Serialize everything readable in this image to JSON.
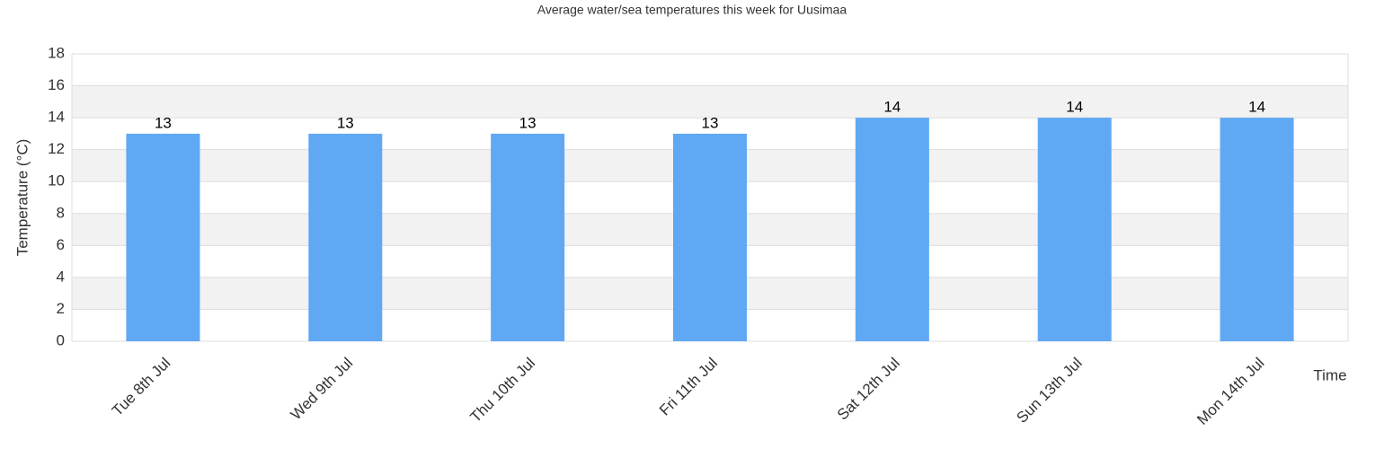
{
  "chart_data": {
    "type": "bar",
    "title": "Average water/sea temperatures this week for Uusimaa",
    "x_label": "Time",
    "y_label": "Temperature (°C)",
    "categories": [
      "Tue 8th Jul",
      "Wed 9th Jul",
      "Thu 10th Jul",
      "Fri 11th Jul",
      "Sat 12th Jul",
      "Sun 13th Jul",
      "Mon 14th Jul"
    ],
    "values": [
      13,
      13,
      13,
      13,
      14,
      14,
      14
    ],
    "color": "#60a8f4",
    "ylim": [
      0,
      18
    ],
    "yticks": [
      0,
      2,
      4,
      6,
      8,
      10,
      12,
      14,
      16,
      18
    ],
    "grid": true
  }
}
